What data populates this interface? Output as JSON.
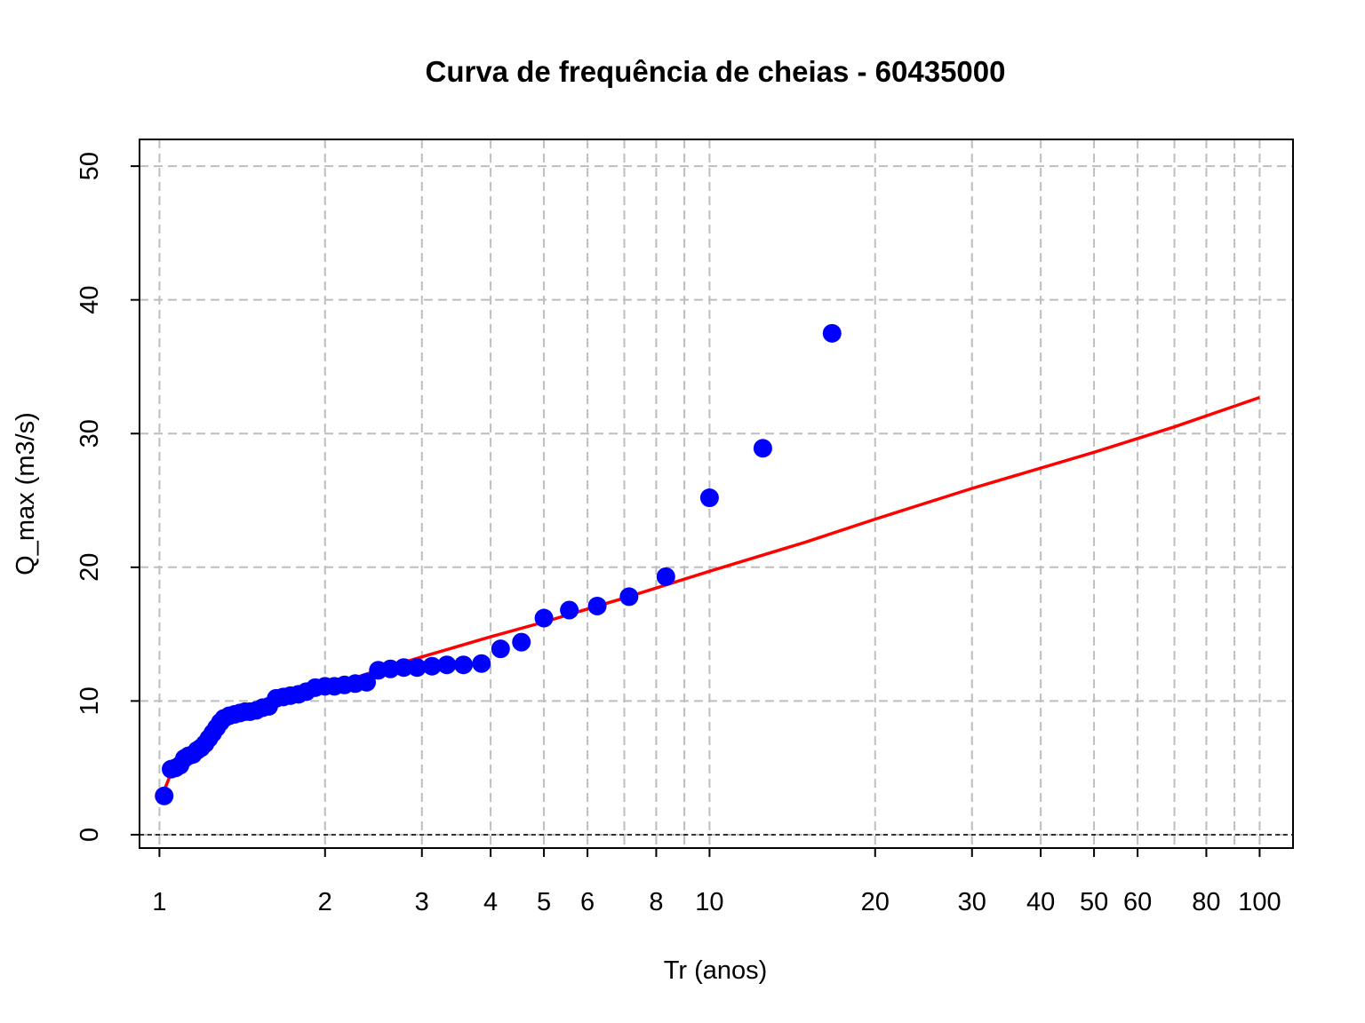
{
  "chart_data": {
    "type": "scatter",
    "title": "Curva de frequência de cheias - 60435000",
    "xlabel": "Tr (anos)",
    "ylabel": "Q_max (m3/s)",
    "x_scale": "log",
    "xlim": [
      0.92,
      115
    ],
    "ylim": [
      -1,
      52
    ],
    "x_ticks": [
      {
        "value": 1,
        "label": "1"
      },
      {
        "value": 2,
        "label": "2"
      },
      {
        "value": 3,
        "label": "3"
      },
      {
        "value": 4,
        "label": "4"
      },
      {
        "value": 5,
        "label": "5"
      },
      {
        "value": 6,
        "label": "6"
      },
      {
        "value": 8,
        "label": "8"
      },
      {
        "value": 10,
        "label": "10"
      },
      {
        "value": 20,
        "label": "20"
      },
      {
        "value": 30,
        "label": "30"
      },
      {
        "value": 40,
        "label": "40"
      },
      {
        "value": 50,
        "label": "50"
      },
      {
        "value": 60,
        "label": "60"
      },
      {
        "value": 80,
        "label": "80"
      },
      {
        "value": 100,
        "label": "100"
      }
    ],
    "x_grid": [
      1,
      2,
      3,
      4,
      5,
      6,
      7,
      8,
      9,
      10,
      20,
      30,
      40,
      50,
      60,
      70,
      80,
      90,
      100
    ],
    "y_ticks": [
      {
        "value": 0,
        "label": "0"
      },
      {
        "value": 10,
        "label": "10"
      },
      {
        "value": 20,
        "label": "20"
      },
      {
        "value": 30,
        "label": "30"
      },
      {
        "value": 40,
        "label": "40"
      },
      {
        "value": 50,
        "label": "50"
      }
    ],
    "grid": true,
    "colors": {
      "points": "#0000ff",
      "fit_line": "#ff0000",
      "grid": "#bebebe"
    },
    "series": [
      {
        "type": "scatter",
        "points": [
          {
            "x": 1.02,
            "y": 2.9
          },
          {
            "x": 1.05,
            "y": 4.9
          },
          {
            "x": 1.07,
            "y": 5.0
          },
          {
            "x": 1.09,
            "y": 5.2
          },
          {
            "x": 1.11,
            "y": 5.7
          },
          {
            "x": 1.13,
            "y": 5.9
          },
          {
            "x": 1.15,
            "y": 6.0
          },
          {
            "x": 1.17,
            "y": 6.3
          },
          {
            "x": 1.19,
            "y": 6.5
          },
          {
            "x": 1.21,
            "y": 6.8
          },
          {
            "x": 1.23,
            "y": 7.2
          },
          {
            "x": 1.25,
            "y": 7.6
          },
          {
            "x": 1.27,
            "y": 8.0
          },
          {
            "x": 1.29,
            "y": 8.4
          },
          {
            "x": 1.31,
            "y": 8.7
          },
          {
            "x": 1.34,
            "y": 8.9
          },
          {
            "x": 1.37,
            "y": 9.0
          },
          {
            "x": 1.4,
            "y": 9.1
          },
          {
            "x": 1.43,
            "y": 9.2
          },
          {
            "x": 1.46,
            "y": 9.2
          },
          {
            "x": 1.5,
            "y": 9.3
          },
          {
            "x": 1.54,
            "y": 9.5
          },
          {
            "x": 1.58,
            "y": 9.6
          },
          {
            "x": 1.63,
            "y": 10.2
          },
          {
            "x": 1.68,
            "y": 10.3
          },
          {
            "x": 1.73,
            "y": 10.4
          },
          {
            "x": 1.79,
            "y": 10.5
          },
          {
            "x": 1.85,
            "y": 10.7
          },
          {
            "x": 1.92,
            "y": 11.0
          },
          {
            "x": 2.0,
            "y": 11.1
          },
          {
            "x": 2.08,
            "y": 11.1
          },
          {
            "x": 2.17,
            "y": 11.2
          },
          {
            "x": 2.27,
            "y": 11.3
          },
          {
            "x": 2.38,
            "y": 11.4
          },
          {
            "x": 2.5,
            "y": 12.3
          },
          {
            "x": 2.63,
            "y": 12.4
          },
          {
            "x": 2.78,
            "y": 12.5
          },
          {
            "x": 2.94,
            "y": 12.5
          },
          {
            "x": 3.13,
            "y": 12.6
          },
          {
            "x": 3.33,
            "y": 12.7
          },
          {
            "x": 3.57,
            "y": 12.7
          },
          {
            "x": 3.85,
            "y": 12.8
          },
          {
            "x": 4.17,
            "y": 13.9
          },
          {
            "x": 4.55,
            "y": 14.4
          },
          {
            "x": 5.0,
            "y": 16.2
          },
          {
            "x": 5.56,
            "y": 16.8
          },
          {
            "x": 6.25,
            "y": 17.1
          },
          {
            "x": 7.14,
            "y": 17.8
          },
          {
            "x": 8.33,
            "y": 19.3
          },
          {
            "x": 10.0,
            "y": 25.2
          },
          {
            "x": 12.5,
            "y": 28.9
          },
          {
            "x": 16.7,
            "y": 37.5
          }
        ]
      },
      {
        "type": "line",
        "points": [
          {
            "x": 1.02,
            "y": 3.3
          },
          {
            "x": 1.05,
            "y": 4.6
          },
          {
            "x": 1.1,
            "y": 5.7
          },
          {
            "x": 1.2,
            "y": 7.0
          },
          {
            "x": 1.3,
            "y": 8.1
          },
          {
            "x": 1.5,
            "y": 9.2
          },
          {
            "x": 1.75,
            "y": 10.2
          },
          {
            "x": 2.0,
            "y": 11.0
          },
          {
            "x": 2.5,
            "y": 12.3
          },
          {
            "x": 3.0,
            "y": 13.3
          },
          {
            "x": 4.0,
            "y": 14.8
          },
          {
            "x": 5.0,
            "y": 15.9
          },
          {
            "x": 7.0,
            "y": 17.7
          },
          {
            "x": 10.0,
            "y": 19.7
          },
          {
            "x": 15.0,
            "y": 21.9
          },
          {
            "x": 20.0,
            "y": 23.6
          },
          {
            "x": 30.0,
            "y": 25.9
          },
          {
            "x": 50.0,
            "y": 28.6
          },
          {
            "x": 70.0,
            "y": 30.5
          },
          {
            "x": 100.0,
            "y": 32.7
          }
        ]
      }
    ]
  }
}
